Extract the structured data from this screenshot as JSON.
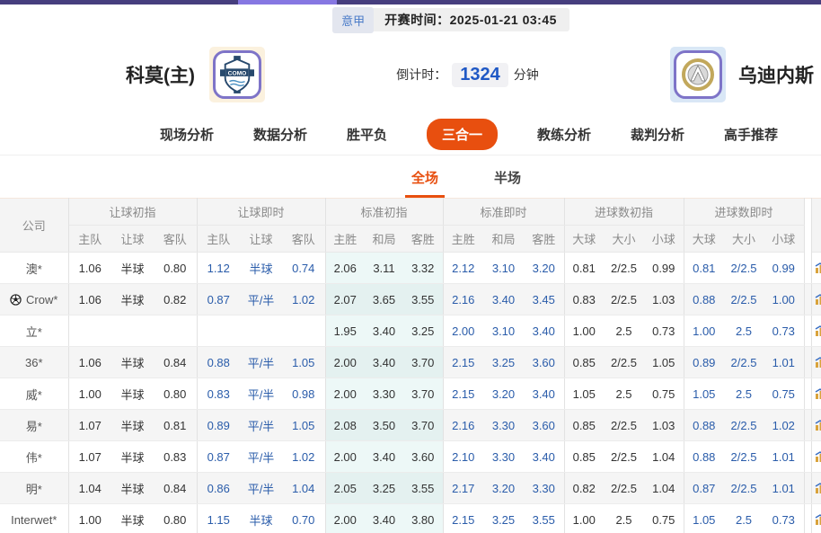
{
  "top": {
    "league": "意甲",
    "kickoff_label": "开赛时间：",
    "kickoff_time": "2025-01-21 03:45"
  },
  "match": {
    "home_name": "科莫(主)",
    "home_logo": "como-crest",
    "away_name": "乌迪内斯",
    "away_logo": "udinese-crest",
    "countdown_label": "倒计时：",
    "countdown_value": "1324",
    "countdown_unit": "分钟"
  },
  "nav": {
    "tabs": [
      {
        "label": "现场分析",
        "active": false
      },
      {
        "label": "数据分析",
        "active": false
      },
      {
        "label": "胜平负",
        "active": false
      },
      {
        "label": "三合一",
        "active": true
      },
      {
        "label": "教练分析",
        "active": false
      },
      {
        "label": "裁判分析",
        "active": false
      },
      {
        "label": "高手推荐",
        "active": false
      }
    ]
  },
  "subtabs": [
    {
      "label": "全场",
      "active": true
    },
    {
      "label": "半场",
      "active": false
    }
  ],
  "table": {
    "company_header": "公司",
    "groups": [
      {
        "label": "让球初指",
        "cols": [
          "主队",
          "让球",
          "客队"
        ],
        "live": false,
        "highlight": false
      },
      {
        "label": "让球即时",
        "cols": [
          "主队",
          "让球",
          "客队"
        ],
        "live": true,
        "highlight": false
      },
      {
        "label": "标准初指",
        "cols": [
          "主胜",
          "和局",
          "客胜"
        ],
        "live": false,
        "highlight": true
      },
      {
        "label": "标准即时",
        "cols": [
          "主胜",
          "和局",
          "客胜"
        ],
        "live": true,
        "highlight": false
      },
      {
        "label": "进球数初指",
        "cols": [
          "大球",
          "大小",
          "小球"
        ],
        "live": false,
        "highlight": false
      },
      {
        "label": "进球数即时",
        "cols": [
          "大球",
          "大小",
          "小球"
        ],
        "live": true,
        "highlight": false
      }
    ],
    "rows": [
      {
        "company": "澳*",
        "icon": false,
        "cells": [
          [
            "1.06",
            "半球",
            "0.80"
          ],
          [
            "1.12",
            "半球",
            "0.74"
          ],
          [
            "2.06",
            "3.11",
            "3.32"
          ],
          [
            "2.12",
            "3.10",
            "3.20"
          ],
          [
            "0.81",
            "2/2.5",
            "0.99"
          ],
          [
            "0.81",
            "2/2.5",
            "0.99"
          ]
        ]
      },
      {
        "company": "Crow*",
        "icon": true,
        "cells": [
          [
            "1.06",
            "半球",
            "0.82"
          ],
          [
            "0.87",
            "平/半",
            "1.02"
          ],
          [
            "2.07",
            "3.65",
            "3.55"
          ],
          [
            "2.16",
            "3.40",
            "3.45"
          ],
          [
            "0.83",
            "2/2.5",
            "1.03"
          ],
          [
            "0.88",
            "2/2.5",
            "1.00"
          ]
        ]
      },
      {
        "company": "立*",
        "icon": false,
        "cells": [
          [
            "",
            "",
            ""
          ],
          [
            "",
            "",
            ""
          ],
          [
            "1.95",
            "3.40",
            "3.25"
          ],
          [
            "2.00",
            "3.10",
            "3.40"
          ],
          [
            "1.00",
            "2.5",
            "0.73"
          ],
          [
            "1.00",
            "2.5",
            "0.73"
          ]
        ]
      },
      {
        "company": "36*",
        "icon": false,
        "cells": [
          [
            "1.06",
            "半球",
            "0.84"
          ],
          [
            "0.88",
            "平/半",
            "1.05"
          ],
          [
            "2.00",
            "3.40",
            "3.70"
          ],
          [
            "2.15",
            "3.25",
            "3.60"
          ],
          [
            "0.85",
            "2/2.5",
            "1.05"
          ],
          [
            "0.89",
            "2/2.5",
            "1.01"
          ]
        ]
      },
      {
        "company": "威*",
        "icon": false,
        "cells": [
          [
            "1.00",
            "半球",
            "0.80"
          ],
          [
            "0.83",
            "平/半",
            "0.98"
          ],
          [
            "2.00",
            "3.30",
            "3.70"
          ],
          [
            "2.15",
            "3.20",
            "3.40"
          ],
          [
            "1.05",
            "2.5",
            "0.75"
          ],
          [
            "1.05",
            "2.5",
            "0.75"
          ]
        ]
      },
      {
        "company": "易*",
        "icon": false,
        "cells": [
          [
            "1.07",
            "半球",
            "0.81"
          ],
          [
            "0.89",
            "平/半",
            "1.05"
          ],
          [
            "2.08",
            "3.50",
            "3.70"
          ],
          [
            "2.16",
            "3.30",
            "3.60"
          ],
          [
            "0.85",
            "2/2.5",
            "1.03"
          ],
          [
            "0.88",
            "2/2.5",
            "1.02"
          ]
        ]
      },
      {
        "company": "伟*",
        "icon": false,
        "cells": [
          [
            "1.07",
            "半球",
            "0.83"
          ],
          [
            "0.87",
            "平/半",
            "1.02"
          ],
          [
            "2.00",
            "3.40",
            "3.60"
          ],
          [
            "2.10",
            "3.30",
            "3.40"
          ],
          [
            "0.85",
            "2/2.5",
            "1.04"
          ],
          [
            "0.88",
            "2/2.5",
            "1.01"
          ]
        ]
      },
      {
        "company": "明*",
        "icon": false,
        "cells": [
          [
            "1.04",
            "半球",
            "0.84"
          ],
          [
            "0.86",
            "平/半",
            "1.04"
          ],
          [
            "2.05",
            "3.25",
            "3.55"
          ],
          [
            "2.17",
            "3.20",
            "3.30"
          ],
          [
            "0.82",
            "2/2.5",
            "1.04"
          ],
          [
            "0.87",
            "2/2.5",
            "1.01"
          ]
        ]
      },
      {
        "company": "Interwet*",
        "icon": false,
        "cells": [
          [
            "1.00",
            "半球",
            "0.80"
          ],
          [
            "1.15",
            "半球",
            "0.70"
          ],
          [
            "2.00",
            "3.40",
            "3.80"
          ],
          [
            "2.15",
            "3.25",
            "3.55"
          ],
          [
            "1.00",
            "2.5",
            "0.75"
          ],
          [
            "1.05",
            "2.5",
            "0.73"
          ]
        ]
      }
    ]
  },
  "colors": {
    "accent_orange": "#e84f0f",
    "live_text_blue": "#2a5caa",
    "countdown_blue": "#1f58c5",
    "highlight_cyan": "#edf8f7",
    "topbar_purple": "#463e7e",
    "topbar_purple_light": "#8677e2"
  },
  "icons": {
    "row_marker": "soccer-ball-icon",
    "right_column": "trend-chart-icon"
  }
}
